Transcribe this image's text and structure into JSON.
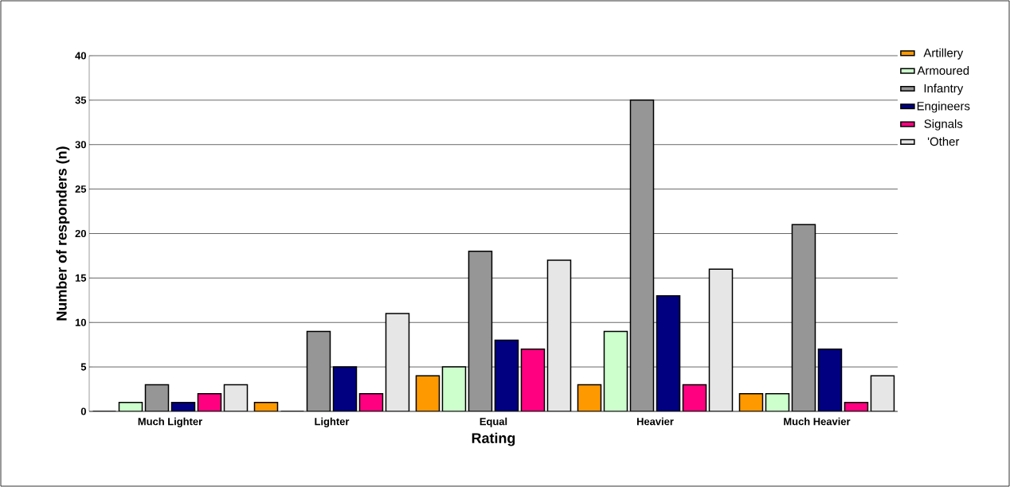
{
  "chart_data": {
    "type": "bar",
    "xlabel": "Rating",
    "ylabel": "Number of responders (n)",
    "categories": [
      "Much Lighter",
      "Lighter",
      "Equal",
      "Heavier",
      "Much Heavier"
    ],
    "series": [
      {
        "name": "Artillery",
        "color": "#ff9900",
        "values": [
          0,
          1,
          4,
          3,
          2
        ]
      },
      {
        "name": "Armoured",
        "color": "#ccffcc",
        "values": [
          1,
          0,
          5,
          9,
          2
        ]
      },
      {
        "name": "Infantry",
        "color": "#969696",
        "values": [
          3,
          9,
          18,
          35,
          21
        ]
      },
      {
        "name": "Engineers",
        "color": "#000080",
        "values": [
          1,
          5,
          8,
          13,
          7
        ]
      },
      {
        "name": "Signals",
        "color": "#ff0080",
        "values": [
          2,
          2,
          7,
          3,
          1
        ]
      },
      {
        "name": "'Other",
        "color": "#e6e6e6",
        "values": [
          3,
          11,
          17,
          16,
          4
        ]
      }
    ],
    "ylim": [
      0,
      40
    ],
    "yticks": [
      0,
      5,
      10,
      15,
      20,
      25,
      30,
      35,
      40
    ],
    "grid": "y",
    "legend": "top right"
  }
}
